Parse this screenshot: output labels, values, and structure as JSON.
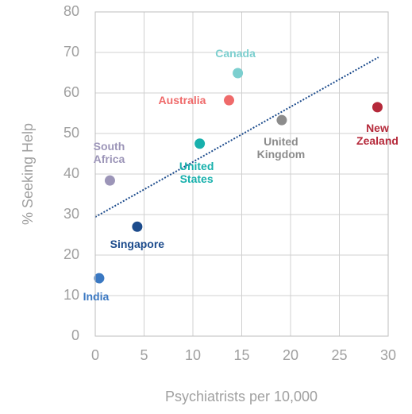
{
  "chart_data": {
    "type": "scatter",
    "x_label": "Psychiatrists per 10,000",
    "y_label": "% Seeking Help",
    "series": [
      {
        "name": "India",
        "color": "#3a78c2",
        "x": [
          0.4
        ],
        "values": [
          14.3
        ]
      },
      {
        "name": "Singapore",
        "color": "#1c4b8c",
        "x": [
          4.3
        ],
        "values": [
          27
        ]
      },
      {
        "name": "South Africa",
        "color": "#9c95b8",
        "x": [
          1.5
        ],
        "values": [
          38.4
        ]
      },
      {
        "name": "United States",
        "color": "#17b0ac",
        "x": [
          10.7
        ],
        "values": [
          47.5
        ]
      },
      {
        "name": "Australia",
        "color": "#ef6a6a",
        "x": [
          13.7
        ],
        "values": [
          58.2
        ]
      },
      {
        "name": "Canada",
        "color": "#7ccfcf",
        "x": [
          14.6
        ],
        "values": [
          64.9
        ]
      },
      {
        "name": "United Kingdom",
        "color": "#8c8c8c",
        "x": [
          19.1
        ],
        "values": [
          53.3
        ]
      },
      {
        "name": "New Zealand",
        "color": "#b5293a",
        "x": [
          28.9
        ],
        "values": [
          56.5
        ]
      }
    ],
    "trendline": {
      "color": "#1c4b8c",
      "x": [
        0,
        29
      ],
      "values": [
        29.4,
        68.8
      ]
    },
    "xlim": [
      0,
      30
    ],
    "xticks": [
      0,
      5,
      10,
      15,
      20,
      25,
      30
    ],
    "ylim": [
      0,
      80
    ],
    "yticks": [
      0,
      10,
      20,
      30,
      40,
      50,
      60,
      70,
      80
    ],
    "grid": true
  }
}
